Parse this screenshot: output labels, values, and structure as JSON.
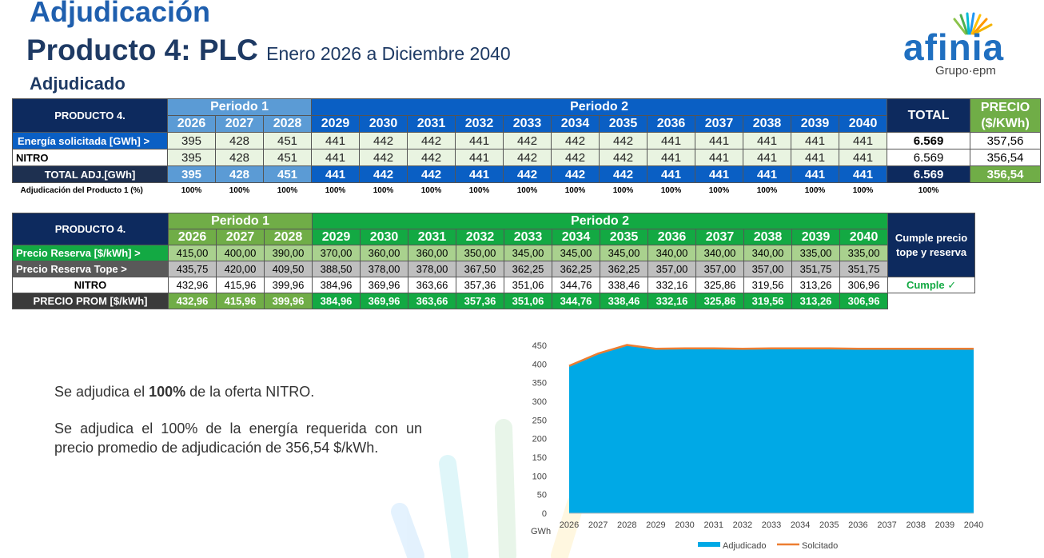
{
  "titles": {
    "main": "Adjudicación",
    "product": "Producto 4: PLC",
    "range": "Enero 2026 a Diciembre 2040",
    "section": "Adjudicado"
  },
  "logo": {
    "word": "afinia",
    "group": "Grupo·epm"
  },
  "colors": {
    "accent_blue": "#0a5fc4",
    "navy": "#0d2a5e",
    "green": "#13a943",
    "light_green": "#70ad47",
    "area": "#00a9e6",
    "line": "#ed7d31"
  },
  "table1": {
    "product_label": "PRODUCTO 4.",
    "periodo1": "Periodo 1",
    "periodo2": "Periodo 2",
    "total_label": "TOTAL",
    "precio_label": "PRECIO ($/KWh)",
    "years": [
      "2026",
      "2027",
      "2028",
      "2029",
      "2030",
      "2031",
      "2032",
      "2033",
      "2034",
      "2035",
      "2036",
      "2037",
      "2038",
      "2039",
      "2040"
    ],
    "rows": [
      {
        "label": "Energía solicitada [GWh] >",
        "values": [
          "395",
          "428",
          "451",
          "441",
          "442",
          "442",
          "441",
          "442",
          "442",
          "442",
          "441",
          "441",
          "441",
          "441",
          "441"
        ],
        "total": "6.569",
        "precio": "357,56"
      },
      {
        "label": "NITRO",
        "values": [
          "395",
          "428",
          "451",
          "441",
          "442",
          "442",
          "441",
          "442",
          "442",
          "442",
          "441",
          "441",
          "441",
          "441",
          "441"
        ],
        "total": "6.569",
        "precio": "356,54"
      },
      {
        "label": "TOTAL ADJ.[GWh]",
        "values": [
          "395",
          "428",
          "451",
          "441",
          "442",
          "442",
          "441",
          "442",
          "442",
          "442",
          "441",
          "441",
          "441",
          "441",
          "441"
        ],
        "total": "6.569",
        "precio": "356,54"
      }
    ],
    "pct_label": "Adjudicación del Producto 1 (%)",
    "pct_values": [
      "100%",
      "100%",
      "100%",
      "100%",
      "100%",
      "100%",
      "100%",
      "100%",
      "100%",
      "100%",
      "100%",
      "100%",
      "100%",
      "100%",
      "100%"
    ],
    "pct_total": "100%"
  },
  "table2": {
    "product_label": "PRODUCTO 4.",
    "periodo1": "Periodo 1",
    "periodo2": "Periodo 2",
    "cumple_header": "Cumple precio tope y reserva",
    "years": [
      "2026",
      "2027",
      "2028",
      "2029",
      "2030",
      "2031",
      "2032",
      "2033",
      "2034",
      "2035",
      "2036",
      "2037",
      "2038",
      "2039",
      "2040"
    ],
    "rows": [
      {
        "label": "Precio Reserva [$/kWh] >",
        "values": [
          "415,00",
          "400,00",
          "390,00",
          "370,00",
          "360,00",
          "360,00",
          "350,00",
          "345,00",
          "345,00",
          "345,00",
          "340,00",
          "340,00",
          "340,00",
          "335,00",
          "335,00"
        ]
      },
      {
        "label": "Precio Reserva Tope >",
        "values": [
          "435,75",
          "420,00",
          "409,50",
          "388,50",
          "378,00",
          "378,00",
          "367,50",
          "362,25",
          "362,25",
          "362,25",
          "357,00",
          "357,00",
          "357,00",
          "351,75",
          "351,75"
        ]
      },
      {
        "label": "NITRO",
        "values": [
          "432,96",
          "415,96",
          "399,96",
          "384,96",
          "369,96",
          "363,66",
          "357,36",
          "351,06",
          "344,76",
          "338,46",
          "332,16",
          "325,86",
          "319,56",
          "313,26",
          "306,96"
        ]
      },
      {
        "label": "PRECIO PROM [$/kWh]",
        "values": [
          "432,96",
          "415,96",
          "399,96",
          "384,96",
          "369,96",
          "363,66",
          "357,36",
          "351,06",
          "344,76",
          "338,46",
          "332,16",
          "325,86",
          "319,56",
          "313,26",
          "306,96"
        ]
      }
    ],
    "cumple_value": "Cumple ✓"
  },
  "summary": {
    "line1_pre": "Se adjudica el ",
    "line1_bold": "100%",
    "line1_post": " de la oferta NITRO.",
    "line2": "Se adjudica el 100% de la energía requerida con un precio promedio de adjudicación de 356,54 $/kWh."
  },
  "chart_data": {
    "type": "area",
    "x": [
      "2026",
      "2027",
      "2028",
      "2029",
      "2030",
      "2031",
      "2032",
      "2033",
      "2034",
      "2035",
      "2036",
      "2037",
      "2038",
      "2039",
      "2040"
    ],
    "series": [
      {
        "name": "Adjudicado",
        "type": "area",
        "color": "#00a9e6",
        "values": [
          395,
          428,
          451,
          441,
          442,
          442,
          441,
          442,
          442,
          442,
          441,
          441,
          441,
          441,
          441
        ]
      },
      {
        "name": "Solcitado",
        "type": "line",
        "color": "#ed7d31",
        "values": [
          395,
          428,
          451,
          441,
          442,
          442,
          441,
          442,
          442,
          442,
          441,
          441,
          441,
          441,
          441
        ]
      }
    ],
    "yticks": [
      "0",
      "50",
      "100",
      "150",
      "200",
      "250",
      "300",
      "350",
      "400",
      "450"
    ],
    "ylim": [
      0,
      450
    ],
    "xlabel": "GWh",
    "legend": "bottom",
    "grid": false
  }
}
